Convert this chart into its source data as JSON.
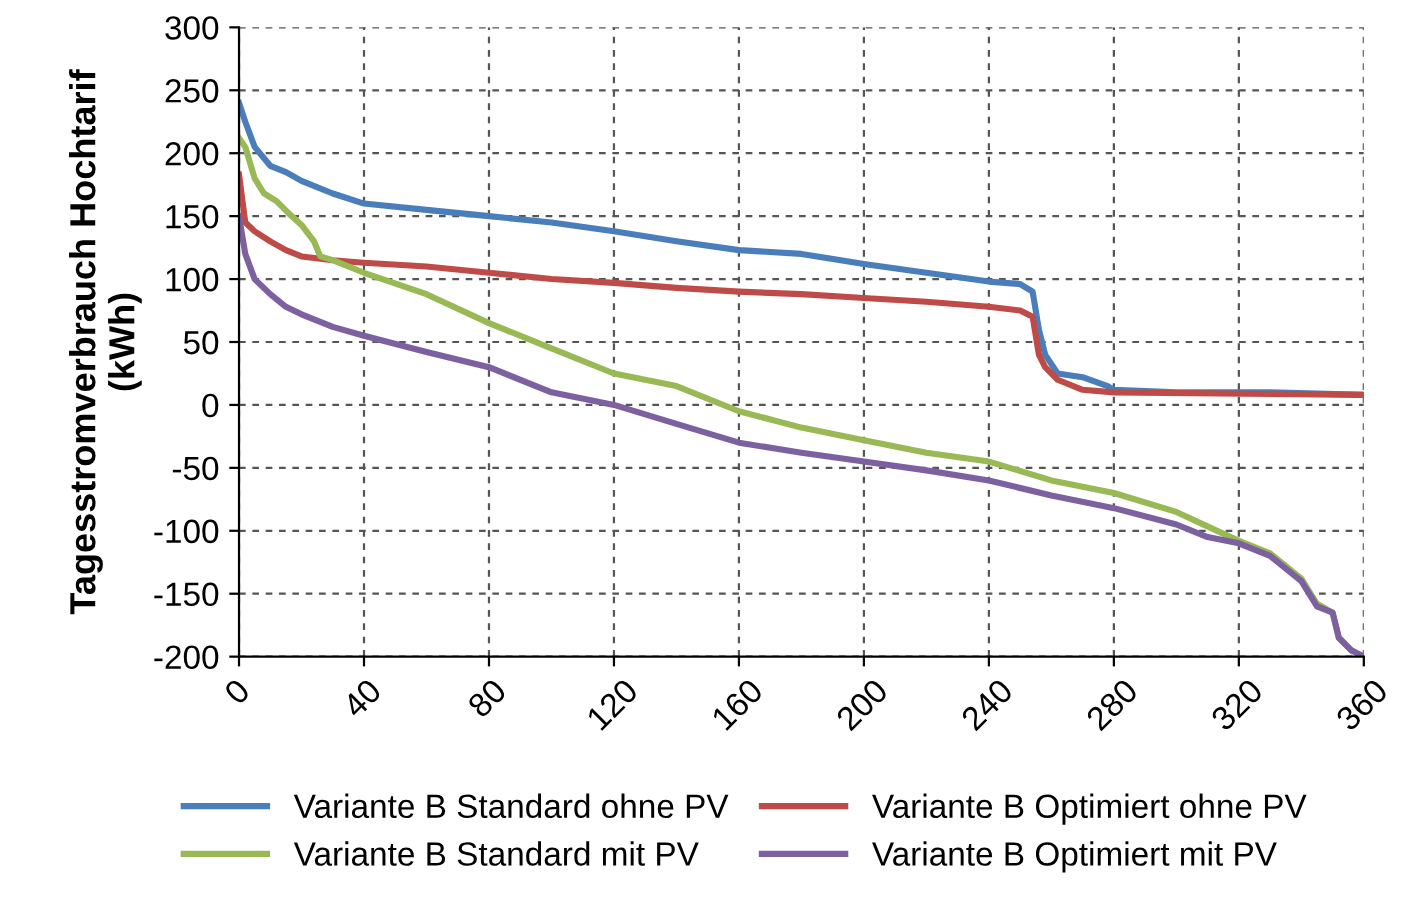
{
  "chart_data": {
    "type": "line",
    "ylabel": "Tagesstromverbrauch Hochtarif\n(kWh)",
    "xlim": [
      0,
      360
    ],
    "xticks": [
      0,
      40,
      80,
      120,
      160,
      200,
      240,
      280,
      320,
      360
    ],
    "ylim": [
      -200,
      300
    ],
    "yticks": [
      -200,
      -150,
      -100,
      -50,
      0,
      50,
      100,
      150,
      200,
      250,
      300
    ],
    "grid": true,
    "legend": "bottom",
    "marker": "none",
    "line_style": "solid",
    "series": [
      {
        "name": "Variante B Standard ohne PV",
        "color": "#4a7ebb",
        "x": [
          0,
          2,
          5,
          10,
          15,
          20,
          30,
          40,
          60,
          80,
          100,
          120,
          140,
          160,
          180,
          200,
          220,
          240,
          250,
          254,
          256,
          258,
          262,
          270,
          278,
          280,
          300,
          330,
          360
        ],
        "values": [
          240,
          225,
          205,
          190,
          185,
          178,
          168,
          160,
          155,
          150,
          145,
          138,
          130,
          123,
          120,
          112,
          105,
          98,
          96,
          90,
          60,
          40,
          25,
          22,
          15,
          12,
          10,
          10,
          8
        ]
      },
      {
        "name": "Variante B Optimiert ohne PV",
        "color": "#be4b48",
        "x": [
          0,
          2,
          5,
          10,
          15,
          20,
          30,
          40,
          60,
          80,
          100,
          120,
          140,
          160,
          180,
          200,
          220,
          240,
          250,
          254,
          256,
          258,
          262,
          270,
          280,
          360
        ],
        "values": [
          183,
          145,
          138,
          130,
          123,
          118,
          115,
          113,
          110,
          105,
          100,
          97,
          93,
          90,
          88,
          85,
          82,
          78,
          75,
          70,
          40,
          30,
          20,
          12,
          10,
          8
        ]
      },
      {
        "name": "Variante B Standard mit PV",
        "color": "#98b954",
        "x": [
          0,
          2,
          5,
          8,
          12,
          16,
          20,
          24,
          26,
          30,
          40,
          60,
          80,
          100,
          120,
          140,
          160,
          180,
          200,
          220,
          240,
          260,
          280,
          300,
          320,
          330,
          340,
          345,
          350,
          352,
          356
        ],
        "values": [
          212,
          205,
          180,
          168,
          162,
          152,
          143,
          130,
          118,
          115,
          105,
          88,
          65,
          45,
          25,
          15,
          -5,
          -18,
          -28,
          -38,
          -45,
          -60,
          -70,
          -85,
          -108,
          -118,
          -138,
          -158,
          -165,
          -185,
          -195
        ]
      },
      {
        "name": "Variante B Optimiert mit PV",
        "color": "#7d60a0",
        "x": [
          0,
          2,
          5,
          10,
          15,
          20,
          30,
          40,
          60,
          80,
          100,
          120,
          140,
          160,
          180,
          200,
          220,
          240,
          260,
          280,
          300,
          310,
          320,
          330,
          340,
          345,
          350,
          352,
          356,
          360
        ],
        "values": [
          150,
          120,
          100,
          88,
          78,
          72,
          62,
          55,
          42,
          30,
          10,
          0,
          -15,
          -30,
          -38,
          -45,
          -52,
          -60,
          -72,
          -82,
          -95,
          -105,
          -110,
          -120,
          -140,
          -160,
          -165,
          -185,
          -195,
          -200
        ]
      }
    ]
  }
}
